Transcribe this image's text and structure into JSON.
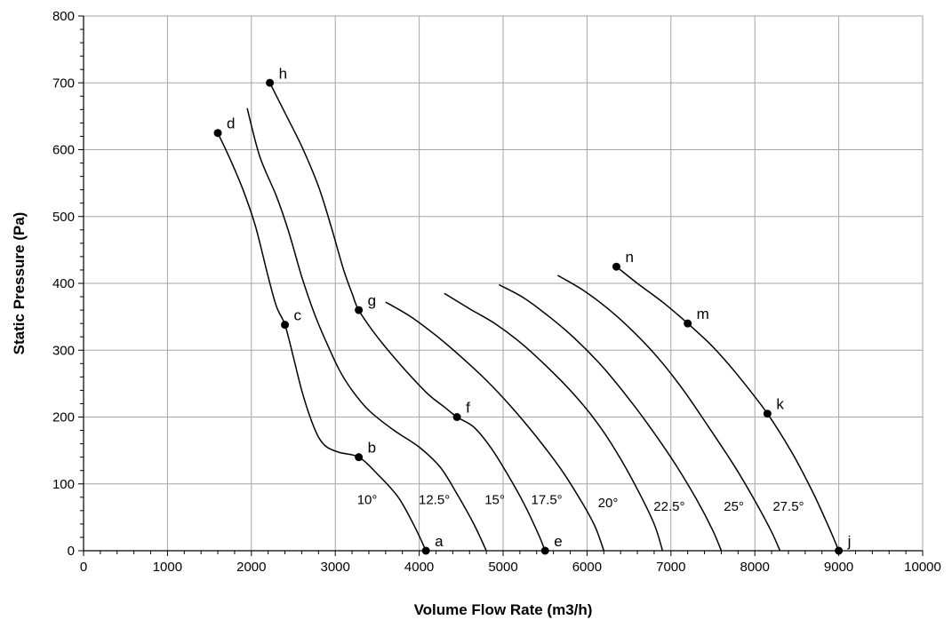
{
  "chart_data": {
    "type": "line",
    "title": "",
    "xlabel": "Volume Flow Rate (m3/h)",
    "ylabel": "Static Pressure (Pa)",
    "xlim": [
      0,
      10000
    ],
    "ylim": [
      0,
      800
    ],
    "x_ticks": [
      0,
      1000,
      2000,
      3000,
      4000,
      5000,
      6000,
      7000,
      8000,
      9000,
      10000
    ],
    "y_ticks": [
      0,
      100,
      200,
      300,
      400,
      500,
      600,
      700,
      800
    ],
    "grid": true,
    "legend": "none",
    "series": [
      {
        "label": "10°",
        "points": [
          [
            1600,
            625
          ],
          [
            1750,
            585
          ],
          [
            1900,
            540
          ],
          [
            2050,
            485
          ],
          [
            2200,
            410
          ],
          [
            2300,
            365
          ],
          [
            2400,
            338
          ],
          [
            2500,
            290
          ],
          [
            2600,
            240
          ],
          [
            2700,
            200
          ],
          [
            2800,
            170
          ],
          [
            2900,
            155
          ],
          [
            3050,
            147
          ],
          [
            3280,
            140
          ],
          [
            3500,
            115
          ],
          [
            3750,
            80
          ],
          [
            3950,
            35
          ],
          [
            4080,
            0
          ]
        ]
      },
      {
        "label": "12.5°",
        "points": [
          [
            1950,
            662
          ],
          [
            2100,
            590
          ],
          [
            2300,
            530
          ],
          [
            2450,
            475
          ],
          [
            2600,
            410
          ],
          [
            2750,
            355
          ],
          [
            2900,
            310
          ],
          [
            3050,
            270
          ],
          [
            3200,
            240
          ],
          [
            3400,
            210
          ],
          [
            3700,
            180
          ],
          [
            4000,
            155
          ],
          [
            4250,
            125
          ],
          [
            4450,
            85
          ],
          [
            4650,
            40
          ],
          [
            4800,
            0
          ]
        ]
      },
      {
        "label": "15°",
        "points": [
          [
            2220,
            700
          ],
          [
            2400,
            655
          ],
          [
            2600,
            605
          ],
          [
            2800,
            545
          ],
          [
            2950,
            485
          ],
          [
            3100,
            420
          ],
          [
            3200,
            385
          ],
          [
            3280,
            360
          ],
          [
            3500,
            320
          ],
          [
            3800,
            275
          ],
          [
            4100,
            235
          ],
          [
            4300,
            215
          ],
          [
            4450,
            200
          ],
          [
            4650,
            185
          ],
          [
            4850,
            155
          ],
          [
            5050,
            115
          ],
          [
            5250,
            70
          ],
          [
            5420,
            25
          ],
          [
            5500,
            0
          ]
        ]
      },
      {
        "label": "17.5°",
        "points": [
          [
            3600,
            372
          ],
          [
            3900,
            350
          ],
          [
            4200,
            322
          ],
          [
            4500,
            290
          ],
          [
            4800,
            255
          ],
          [
            5100,
            215
          ],
          [
            5400,
            170
          ],
          [
            5700,
            120
          ],
          [
            5950,
            70
          ],
          [
            6100,
            35
          ],
          [
            6200,
            0
          ]
        ]
      },
      {
        "label": "20°",
        "points": [
          [
            4300,
            385
          ],
          [
            4600,
            362
          ],
          [
            4900,
            340
          ],
          [
            5200,
            312
          ],
          [
            5500,
            278
          ],
          [
            5800,
            240
          ],
          [
            6100,
            195
          ],
          [
            6350,
            148
          ],
          [
            6600,
            92
          ],
          [
            6800,
            40
          ],
          [
            6900,
            0
          ]
        ]
      },
      {
        "label": "22.5°",
        "points": [
          [
            4950,
            398
          ],
          [
            5250,
            378
          ],
          [
            5550,
            350
          ],
          [
            5850,
            318
          ],
          [
            6150,
            280
          ],
          [
            6450,
            235
          ],
          [
            6750,
            185
          ],
          [
            7050,
            130
          ],
          [
            7300,
            78
          ],
          [
            7500,
            30
          ],
          [
            7600,
            0
          ]
        ]
      },
      {
        "label": "25°",
        "points": [
          [
            5650,
            412
          ],
          [
            5950,
            390
          ],
          [
            6250,
            362
          ],
          [
            6550,
            328
          ],
          [
            6850,
            288
          ],
          [
            7150,
            240
          ],
          [
            7450,
            185
          ],
          [
            7750,
            128
          ],
          [
            8000,
            75
          ],
          [
            8200,
            28
          ],
          [
            8300,
            0
          ]
        ]
      },
      {
        "label": "27.5°",
        "points": [
          [
            6350,
            425
          ],
          [
            6600,
            400
          ],
          [
            6900,
            372
          ],
          [
            7200,
            340
          ],
          [
            7500,
            305
          ],
          [
            7800,
            262
          ],
          [
            8150,
            205
          ],
          [
            8450,
            145
          ],
          [
            8700,
            85
          ],
          [
            8900,
            30
          ],
          [
            9000,
            0
          ]
        ]
      }
    ],
    "labeled_points": [
      {
        "label": "a",
        "x": 4080,
        "y": 0
      },
      {
        "label": "b",
        "x": 3280,
        "y": 140
      },
      {
        "label": "c",
        "x": 2400,
        "y": 338
      },
      {
        "label": "d",
        "x": 1600,
        "y": 625
      },
      {
        "label": "e",
        "x": 5500,
        "y": 0
      },
      {
        "label": "f",
        "x": 4450,
        "y": 200
      },
      {
        "label": "g",
        "x": 3280,
        "y": 360
      },
      {
        "label": "h",
        "x": 2220,
        "y": 700
      },
      {
        "label": "j",
        "x": 9000,
        "y": 0
      },
      {
        "label": "k",
        "x": 8150,
        "y": 205
      },
      {
        "label": "m",
        "x": 7200,
        "y": 340
      },
      {
        "label": "n",
        "x": 6350,
        "y": 425
      }
    ],
    "angle_labels": [
      {
        "text": "10°",
        "x": 3380,
        "y": 70
      },
      {
        "text": "12.5°",
        "x": 4180,
        "y": 70
      },
      {
        "text": "15°",
        "x": 4900,
        "y": 70
      },
      {
        "text": "17.5°",
        "x": 5520,
        "y": 70
      },
      {
        "text": "20°",
        "x": 6250,
        "y": 65
      },
      {
        "text": "22.5°",
        "x": 6980,
        "y": 60
      },
      {
        "text": "25°",
        "x": 7750,
        "y": 60
      },
      {
        "text": "27.5°",
        "x": 8400,
        "y": 60
      }
    ]
  }
}
